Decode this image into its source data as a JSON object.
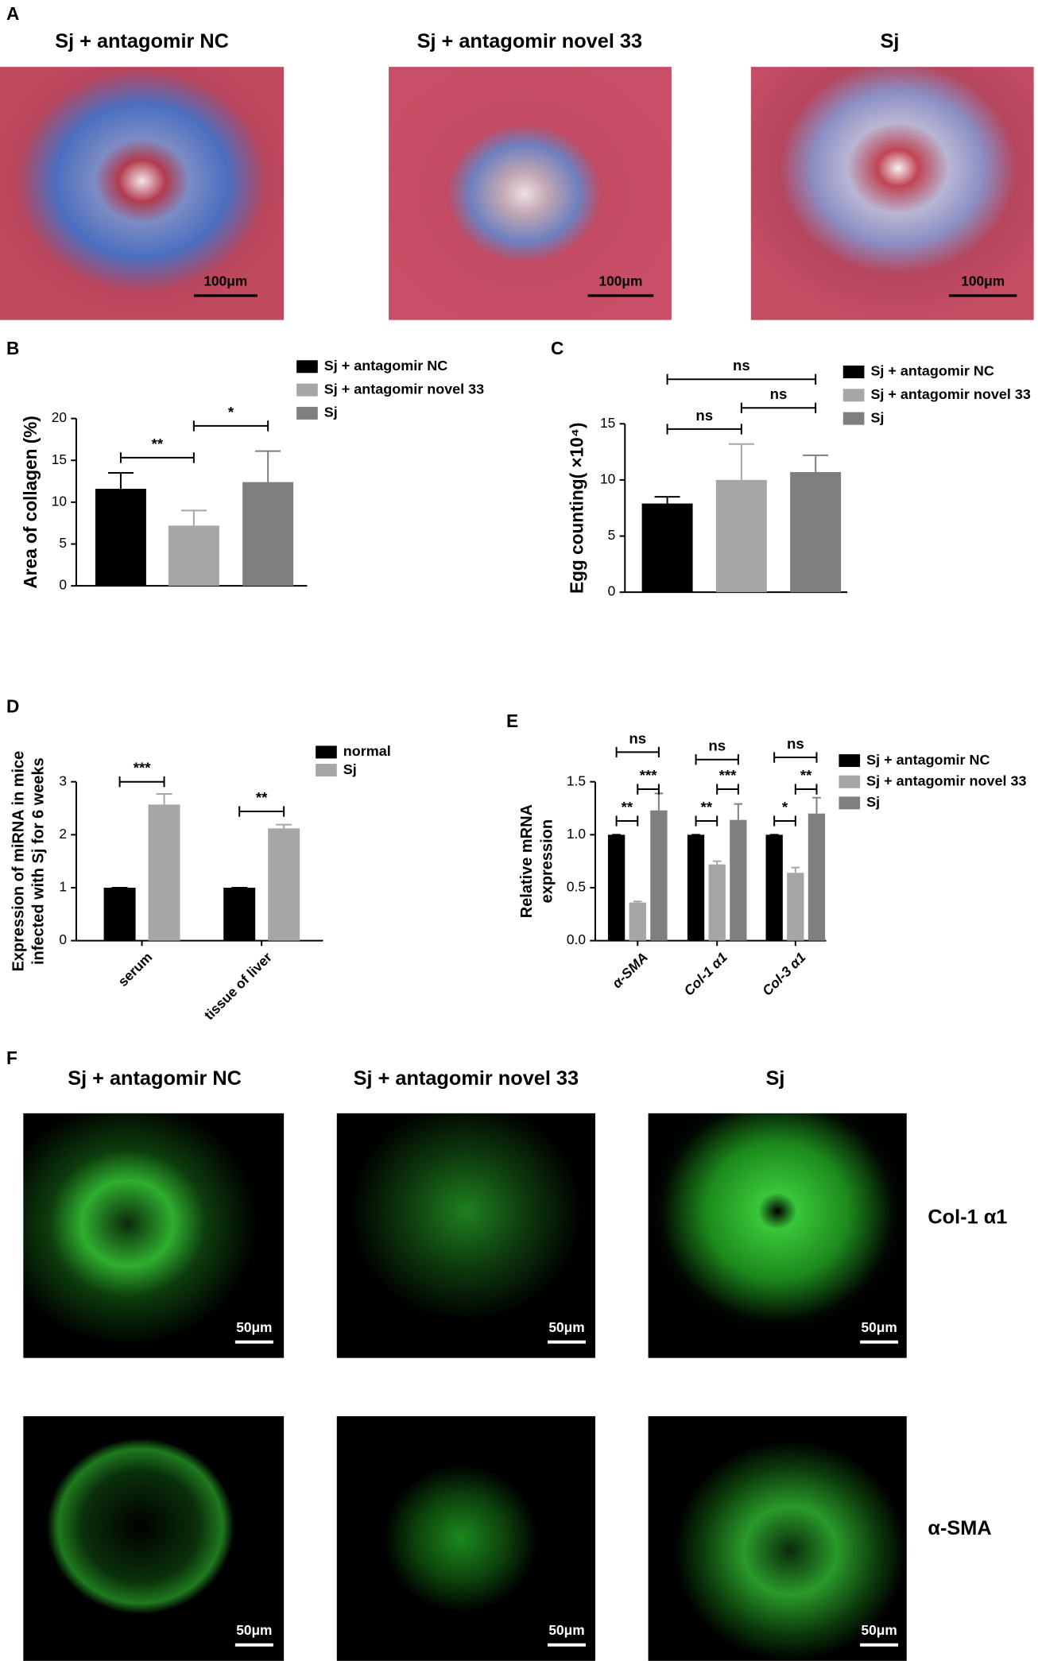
{
  "panel_labels": [
    "A",
    "B",
    "C",
    "D",
    "E",
    "F"
  ],
  "panel_a": {
    "titles": [
      "Sj + antagomir NC",
      "Sj + antagomir novel 33",
      "Sj"
    ],
    "scale_bar": "100μm"
  },
  "panel_f": {
    "titles": [
      "Sj + antagomir NC",
      "Sj + antagomir novel 33",
      "Sj"
    ],
    "rows": [
      "Col-1 α1",
      "α-SMA"
    ],
    "scale_bar": "50μm"
  },
  "chart_data": [
    {
      "type": "bar",
      "ylabel": [
        "Area of collagen (%)"
      ],
      "series": [
        {
          "name": "Sj + antagomir NC",
          "color": "#000000",
          "values": [
            11.6
          ],
          "errors": [
            1.9
          ]
        },
        {
          "name": "Sj + antagomir novel 33",
          "color": "#a6a6a8",
          "values": [
            7.2
          ],
          "errors": [
            1.8
          ]
        },
        {
          "name": "Sj",
          "color": "#7f7f7f",
          "values": [
            12.4
          ],
          "errors": [
            3.7
          ]
        }
      ],
      "ylim": [
        0,
        20
      ],
      "yticks": [
        0,
        5,
        10,
        15,
        20
      ],
      "annotations": [
        "**",
        "*"
      ]
    },
    {
      "type": "bar",
      "ylabel": [
        "Egg counting( ×10⁴)"
      ],
      "series": [
        {
          "name": "Sj + antagomir NC",
          "color": "#000000",
          "values": [
            7.9
          ],
          "errors": [
            0.6
          ]
        },
        {
          "name": "Sj + antagomir novel 33",
          "color": "#a6a6a8",
          "values": [
            10.0
          ],
          "errors": [
            3.2
          ]
        },
        {
          "name": "Sj",
          "color": "#7f7f7f",
          "values": [
            10.7
          ],
          "errors": [
            1.5
          ]
        }
      ],
      "ylim": [
        0,
        15
      ],
      "yticks": [
        0,
        5,
        10,
        15
      ],
      "annotations": [
        "ns",
        "ns",
        "ns"
      ]
    },
    {
      "type": "bar",
      "ylabel": [
        "Expression of miRNA in mice",
        "infected with Sj for 6 weeks"
      ],
      "categories": [
        "serum",
        "tissue of liver"
      ],
      "series": [
        {
          "name": "normal",
          "color": "#000000",
          "values": [
            1,
            1
          ],
          "errors": [
            0,
            0
          ]
        },
        {
          "name": "Sj",
          "color": "#a6a6a8",
          "values": [
            2.57,
            2.12
          ],
          "errors": [
            0.2,
            0.07
          ]
        }
      ],
      "ylim": [
        0,
        3
      ],
      "yticks": [
        0,
        1,
        2,
        3
      ],
      "annotations": [
        "***",
        "**"
      ]
    },
    {
      "type": "bar",
      "ylabel": [
        "Relative mRNA",
        "expression"
      ],
      "categories": [
        "α-SMA",
        "Col-1 α1",
        "Col-3 α1"
      ],
      "series": [
        {
          "name": "Sj + antagomir NC",
          "color": "#000000",
          "values": [
            1,
            1,
            1
          ],
          "errors": [
            0,
            0,
            0
          ]
        },
        {
          "name": "Sj + antagomir novel 33",
          "color": "#a6a6a8",
          "values": [
            0.36,
            0.72,
            0.64
          ],
          "errors": [
            0.01,
            0.03,
            0.05
          ]
        },
        {
          "name": "Sj",
          "color": "#7f7f7f",
          "values": [
            1.23,
            1.14,
            1.2
          ],
          "errors": [
            0.16,
            0.15,
            0.15
          ]
        }
      ],
      "ylim": [
        0,
        1.5
      ],
      "yticks": [
        {
          "value": 0,
          "label": "0.0"
        },
        {
          "value": 0.5,
          "label": "0.5"
        },
        {
          "value": 1,
          "label": "1.0"
        },
        {
          "value": 1.5,
          "label": "1.5"
        }
      ],
      "annotations": [
        "ns",
        "**",
        "***",
        "ns",
        "**",
        "***",
        "ns",
        "*",
        "**"
      ]
    }
  ]
}
